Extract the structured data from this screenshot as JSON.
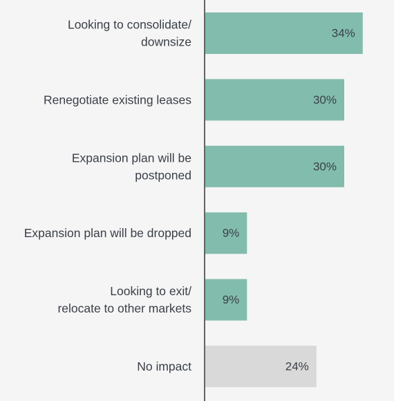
{
  "chart_data": {
    "type": "bar",
    "orientation": "horizontal",
    "categories": [
      [
        "Looking to consolidate/",
        "downsize"
      ],
      [
        "Renegotiate existing leases"
      ],
      [
        "Expansion plan will be",
        "postponed"
      ],
      [
        "Expansion plan will be dropped"
      ],
      [
        "Looking to exit/",
        "relocate to other markets"
      ],
      [
        "No impact"
      ]
    ],
    "values": [
      34,
      30,
      30,
      9,
      9,
      24
    ],
    "value_labels": [
      "34%",
      "30%",
      "30%",
      "9%",
      "9%",
      "24%"
    ],
    "xlim": [
      0,
      40
    ],
    "unit": "%",
    "grid": false,
    "legend": "none",
    "colors": {
      "bar": "#82bcad",
      "highlight_bar": "#d9d9d9",
      "axis": "#333333",
      "text": "#3a4048",
      "background": "#f5f5f5"
    },
    "bar_colors": [
      "bar",
      "bar",
      "bar",
      "bar",
      "bar",
      "highlight_bar"
    ]
  }
}
